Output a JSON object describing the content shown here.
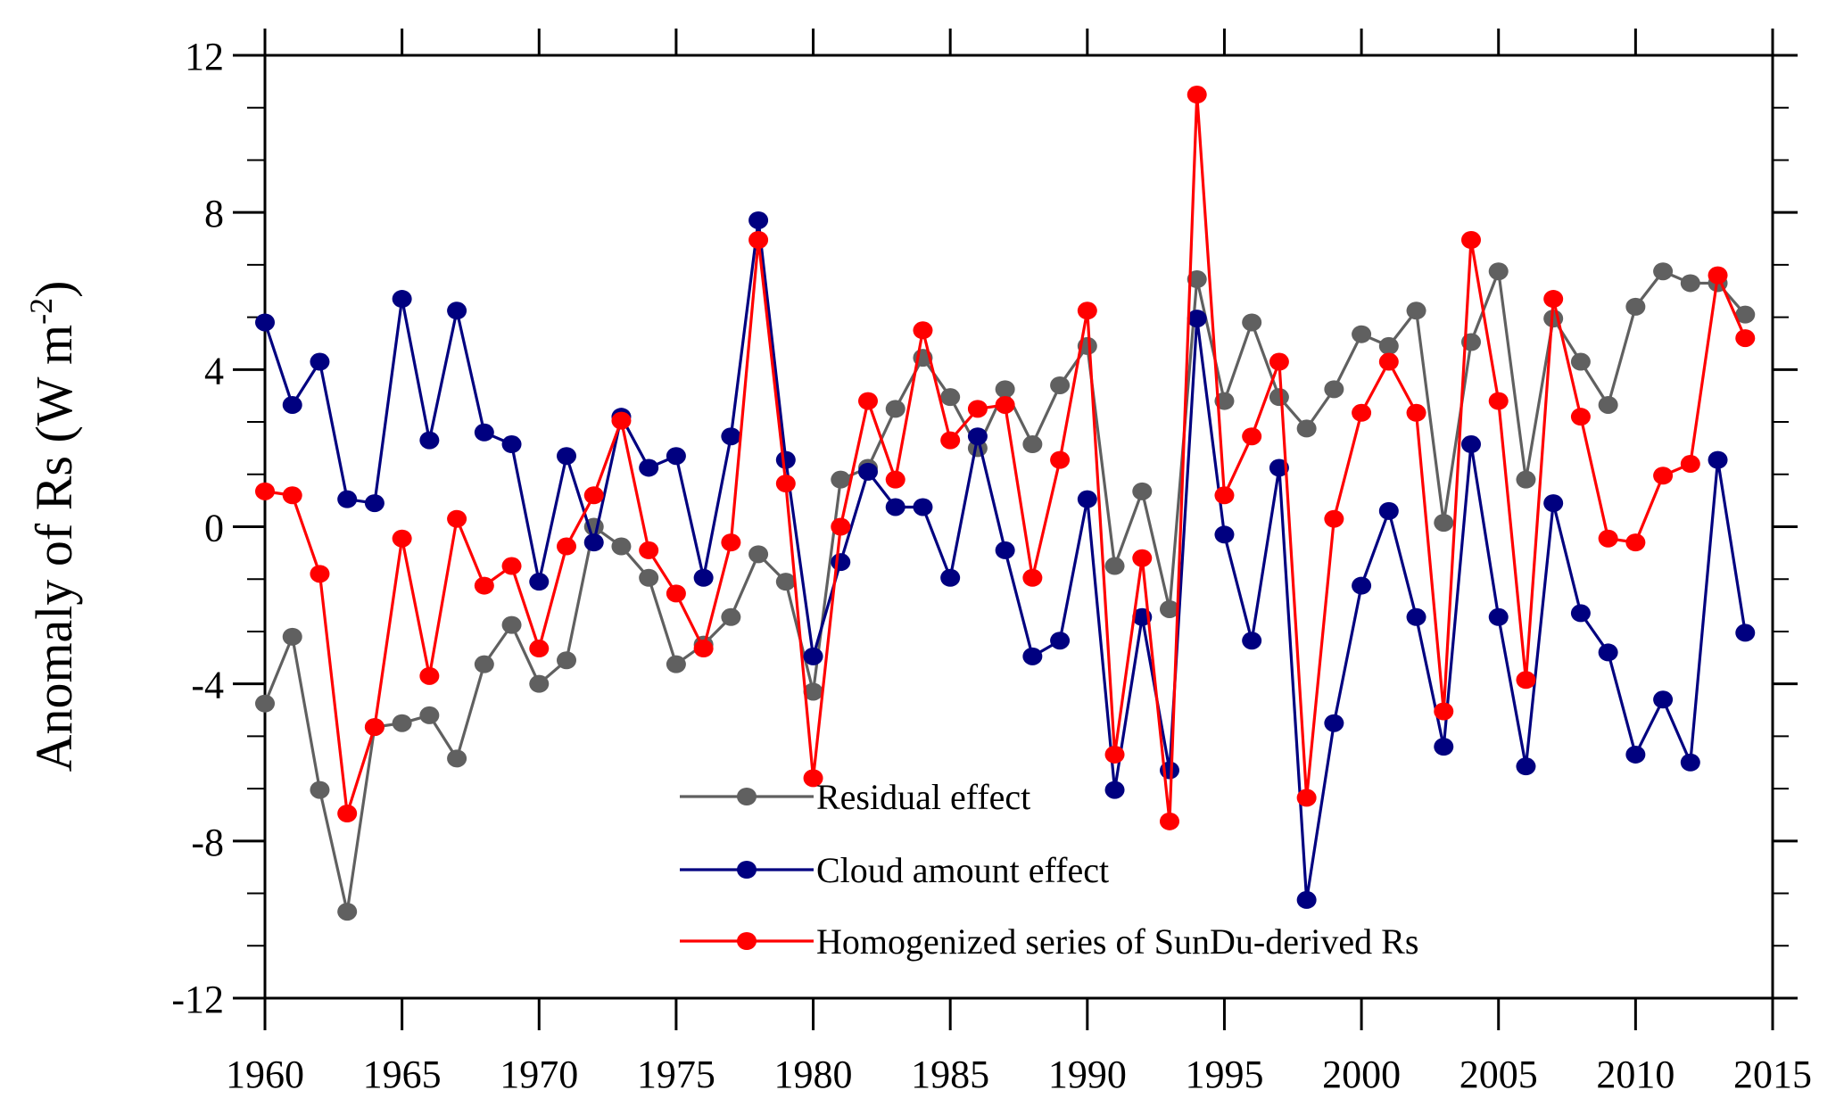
{
  "chart_data": {
    "type": "line",
    "title": "",
    "xlabel": "",
    "ylabel": "Anomaly of Rs (W m",
    "ylabel_sup": "-2",
    "ylabel_close": ")",
    "xlim": [
      1960,
      2015
    ],
    "ylim": [
      -12,
      12
    ],
    "xticks": [
      1960,
      1965,
      1970,
      1975,
      1980,
      1985,
      1990,
      1995,
      2000,
      2005,
      2010,
      2015
    ],
    "yticks": [
      -12,
      -8,
      -4,
      0,
      4,
      8,
      12
    ],
    "ytick_labels": [
      "-12",
      "-8",
      "-4",
      "0",
      "4",
      "8",
      "12"
    ],
    "y_minor_step": 1.333,
    "grid": false,
    "legend_position": "bottom-center",
    "x": [
      1960,
      1961,
      1962,
      1963,
      1964,
      1965,
      1966,
      1967,
      1968,
      1969,
      1970,
      1971,
      1972,
      1973,
      1974,
      1975,
      1976,
      1977,
      1978,
      1979,
      1980,
      1981,
      1982,
      1983,
      1984,
      1985,
      1986,
      1987,
      1988,
      1989,
      1990,
      1991,
      1992,
      1993,
      1994,
      1995,
      1996,
      1997,
      1998,
      1999,
      2000,
      2001,
      2002,
      2003,
      2004,
      2005,
      2006,
      2007,
      2008,
      2009,
      2010,
      2011,
      2012,
      2013,
      2014
    ],
    "series": [
      {
        "name": "Residual effect",
        "color": "#606060",
        "values": [
          -4.5,
          -2.8,
          -6.7,
          -9.8,
          -5.1,
          -5.0,
          -4.8,
          -5.9,
          -3.5,
          -2.5,
          -4.0,
          -3.4,
          0.0,
          -0.5,
          -1.3,
          -3.5,
          -3.0,
          -2.3,
          -0.7,
          -1.4,
          -4.2,
          1.2,
          1.5,
          3.0,
          4.3,
          3.3,
          2.0,
          3.5,
          2.1,
          3.6,
          4.6,
          -1.0,
          0.9,
          -2.1,
          6.3,
          3.2,
          5.2,
          3.3,
          2.5,
          3.5,
          4.9,
          4.6,
          5.5,
          0.1,
          4.7,
          6.5,
          1.2,
          5.3,
          4.2,
          3.1,
          5.6,
          6.5,
          6.2,
          6.2,
          5.4
        ]
      },
      {
        "name": "Cloud amount effect",
        "color": "#000080",
        "values": [
          5.2,
          3.1,
          4.2,
          0.7,
          0.6,
          5.8,
          2.2,
          5.5,
          2.4,
          2.1,
          -1.4,
          1.8,
          -0.4,
          2.8,
          1.5,
          1.8,
          -1.3,
          2.3,
          7.8,
          1.7,
          -3.3,
          -0.9,
          1.4,
          0.5,
          0.5,
          -1.3,
          2.3,
          -0.6,
          -3.3,
          -2.9,
          0.7,
          -6.7,
          -2.3,
          -6.2,
          5.3,
          -0.2,
          -2.9,
          1.5,
          -9.5,
          -5.0,
          -1.5,
          0.4,
          -2.3,
          -5.6,
          2.1,
          -2.3,
          -6.1,
          0.6,
          -2.2,
          -3.2,
          -5.8,
          -4.4,
          -6.0,
          1.7,
          -2.7
        ]
      },
      {
        "name": "Homogenized series of SunDu-derived Rs",
        "color": "#ff0000",
        "values": [
          0.9,
          0.8,
          -1.2,
          -7.3,
          -5.1,
          -0.3,
          -3.8,
          0.2,
          -1.5,
          -1.0,
          -3.1,
          -0.5,
          0.8,
          2.7,
          -0.6,
          -1.7,
          -3.1,
          -0.4,
          7.3,
          1.1,
          -6.4,
          0.0,
          3.2,
          1.2,
          5.0,
          2.2,
          3.0,
          3.1,
          -1.3,
          1.7,
          5.5,
          -5.8,
          -0.8,
          -7.5,
          11.0,
          0.8,
          2.3,
          4.2,
          -6.9,
          0.2,
          2.9,
          4.2,
          2.9,
          -4.7,
          7.3,
          3.2,
          -3.9,
          5.8,
          2.8,
          -0.3,
          -0.4,
          1.3,
          1.6,
          6.4,
          4.8
        ]
      }
    ],
    "draw_order": [
      0,
      1,
      2
    ]
  }
}
